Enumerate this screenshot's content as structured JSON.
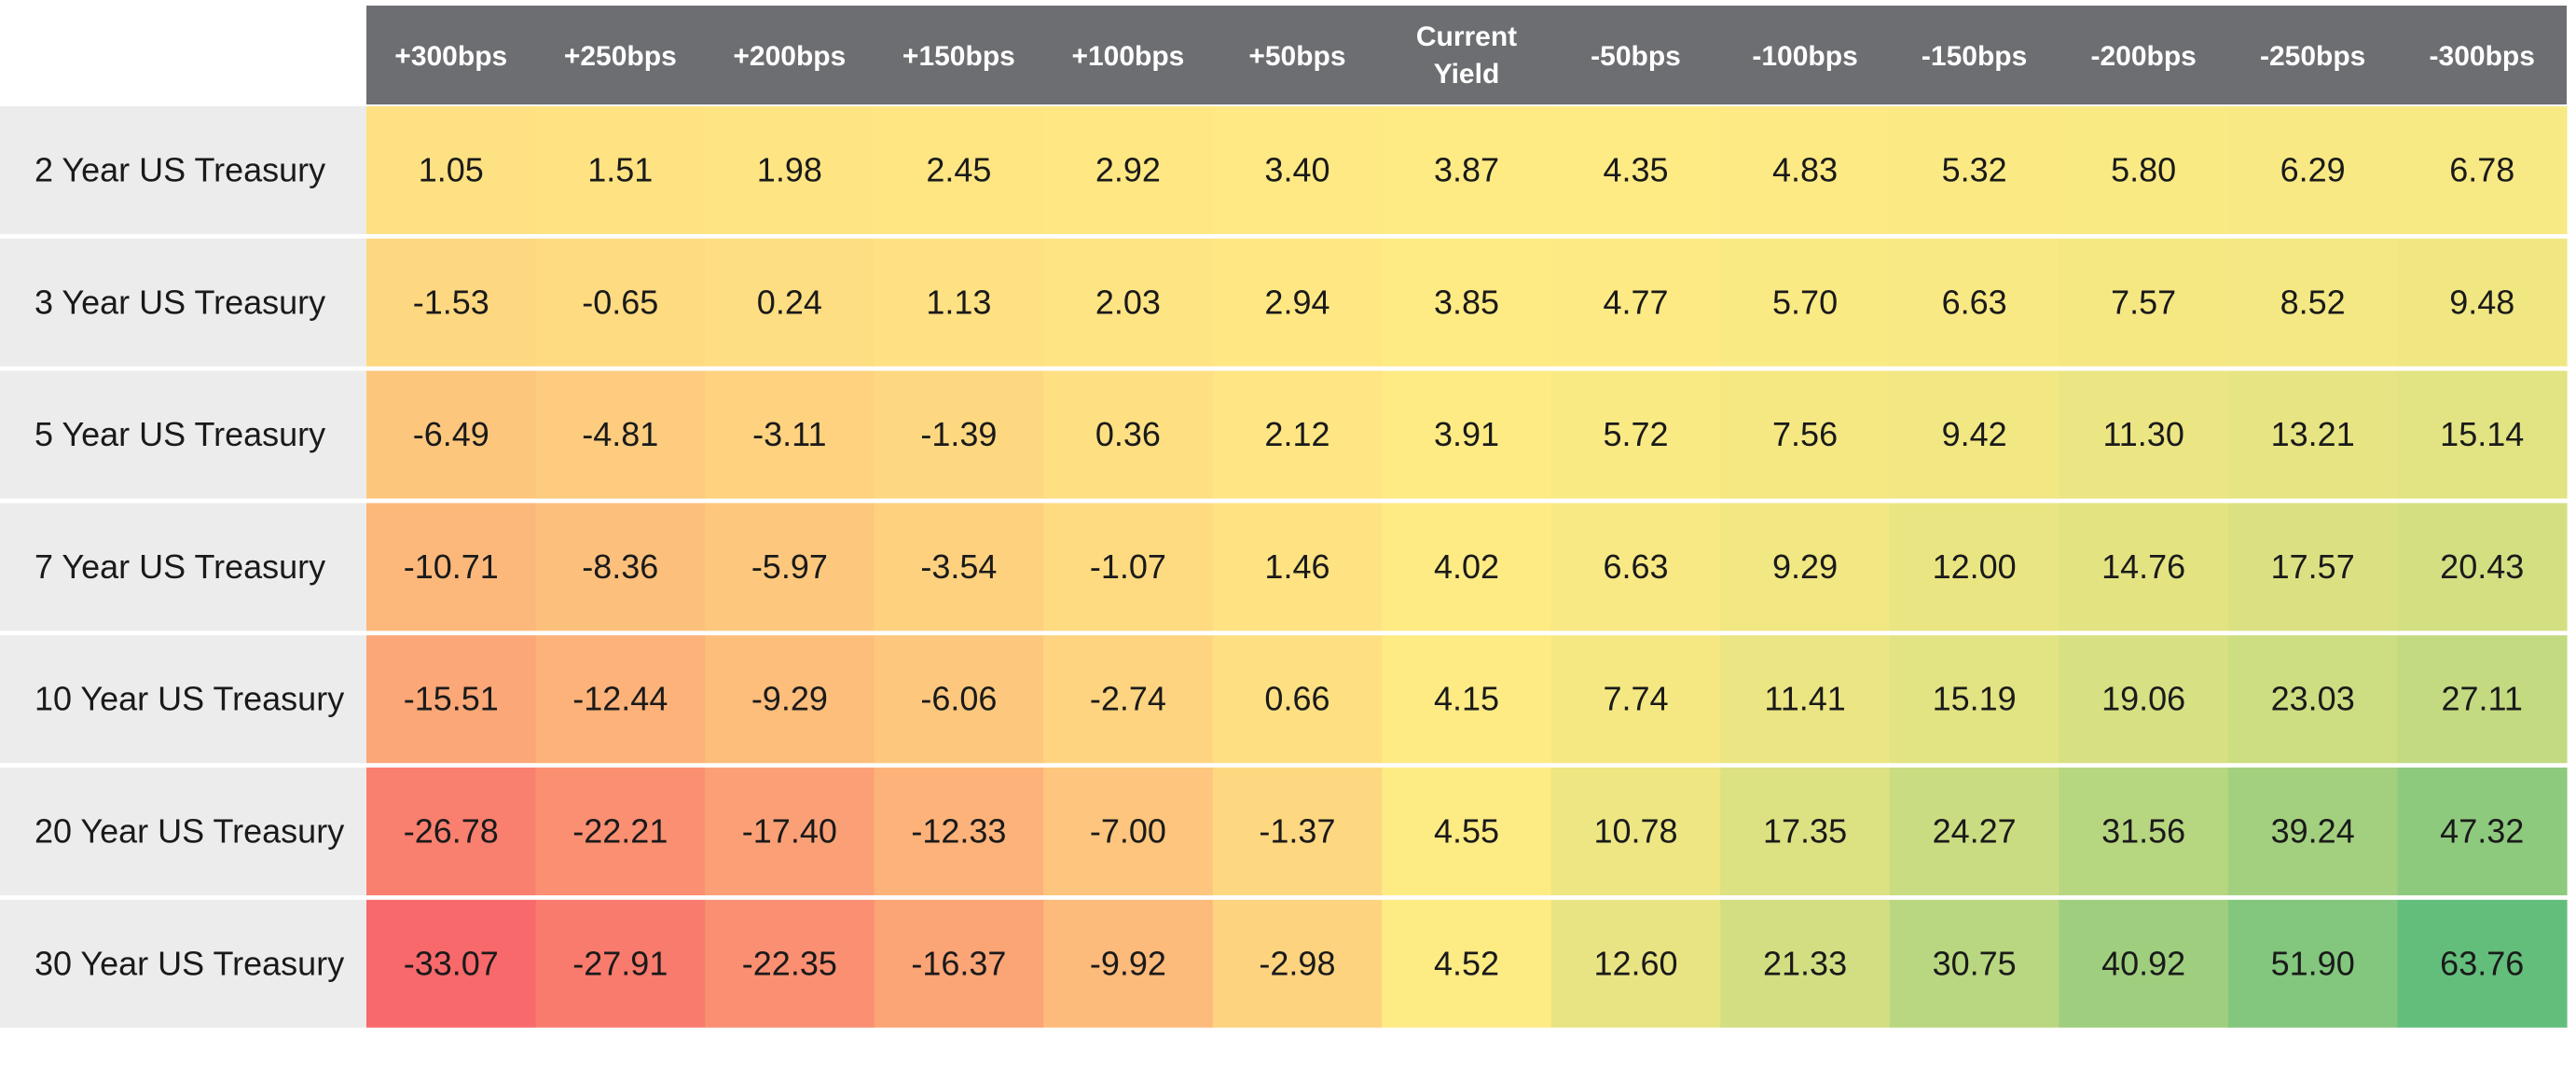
{
  "chart_data": {
    "type": "heatmap",
    "columns": [
      "+300bps",
      "+250bps",
      "+200bps",
      "+150bps",
      "+100bps",
      "+50bps",
      "Current Yield",
      "-50bps",
      "-100bps",
      "-150bps",
      "-200bps",
      "-250bps",
      "-300bps"
    ],
    "rows": [
      "2 Year US Treasury",
      "3 Year US Treasury",
      "5 Year US Treasury",
      "7 Year US Treasury",
      "10 Year US Treasury",
      "20 Year US Treasury",
      "30 Year US Treasury"
    ],
    "values": [
      [
        "1.05",
        "1.51",
        "1.98",
        "2.45",
        "2.92",
        "3.40",
        "3.87",
        "4.35",
        "4.83",
        "5.32",
        "5.80",
        "6.29",
        "6.78"
      ],
      [
        "-1.53",
        "-0.65",
        "0.24",
        "1.13",
        "2.03",
        "2.94",
        "3.85",
        "4.77",
        "5.70",
        "6.63",
        "7.57",
        "8.52",
        "9.48"
      ],
      [
        "-6.49",
        "-4.81",
        "-3.11",
        "-1.39",
        "0.36",
        "2.12",
        "3.91",
        "5.72",
        "7.56",
        "9.42",
        "11.30",
        "13.21",
        "15.14"
      ],
      [
        "-10.71",
        "-8.36",
        "-5.97",
        "-3.54",
        "-1.07",
        "1.46",
        "4.02",
        "6.63",
        "9.29",
        "12.00",
        "14.76",
        "17.57",
        "20.43"
      ],
      [
        "-15.51",
        "-12.44",
        "-9.29",
        "-6.06",
        "-2.74",
        "0.66",
        "4.15",
        "7.74",
        "11.41",
        "15.19",
        "19.06",
        "23.03",
        "27.11"
      ],
      [
        "-26.78",
        "-22.21",
        "-17.40",
        "-12.33",
        "-7.00",
        "-1.37",
        "4.55",
        "10.78",
        "17.35",
        "24.27",
        "31.56",
        "39.24",
        "47.32"
      ],
      [
        "-33.07",
        "-27.91",
        "-22.35",
        "-16.37",
        "-9.92",
        "-2.98",
        "4.52",
        "12.60",
        "21.33",
        "30.75",
        "40.92",
        "51.90",
        "63.76"
      ]
    ],
    "color_scale": {
      "min_color": "#f8696b",
      "mid_color": "#ffeb84",
      "max_color": "#63be7b",
      "min": -33.07,
      "mid": 3.9,
      "max": 63.76
    },
    "header_background": "#6d6e71",
    "label_background": "#ececec"
  }
}
